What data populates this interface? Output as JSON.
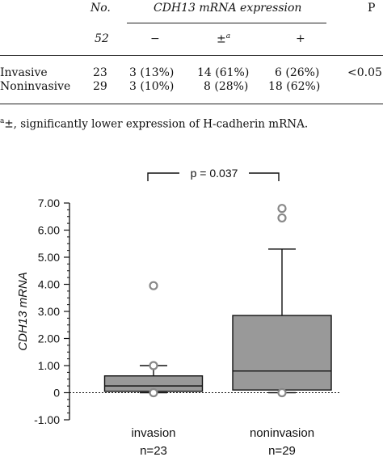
{
  "table": {
    "headers": {
      "no": "No.",
      "expression_group": "CDH13 mRNA expression",
      "p": "P"
    },
    "subheaders": {
      "total": "52",
      "minus": "−",
      "pm": "±",
      "pm_sup": "a",
      "plus": "+"
    },
    "rows": [
      {
        "label": "Invasive",
        "no": "23",
        "minus": "3 (13%)",
        "pm": "14 (61%)",
        "plus": "6 (26%)",
        "p": "<0.05"
      },
      {
        "label": "Noninvasive",
        "no": "29",
        "minus": "3 (10%)",
        "pm": "8 (28%)",
        "plus": "18 (62%)",
        "p": ""
      }
    ],
    "footnote_mark": "a",
    "footnote_text": "±, significantly lower expression of H-cadherin mRNA."
  },
  "chart_data": {
    "type": "box",
    "ylabel": "CDH13 mRNA",
    "ylim": [
      -1.0,
      7.0
    ],
    "yticks": [
      "7.00",
      "6.00",
      "5.00",
      "4.00",
      "3.00",
      "2.00",
      "1.00",
      "0",
      "-1.00"
    ],
    "ytick_values": [
      7,
      6,
      5,
      4,
      3,
      2,
      1,
      0,
      -1
    ],
    "significance_label": "p = 0.037",
    "reference_line": 0,
    "box_color": "#999999",
    "groups": [
      {
        "name": "invasion",
        "n_label": "n=23",
        "whisker_low": 0.0,
        "q1": 0.05,
        "median": 0.25,
        "q3": 0.62,
        "whisker_high": 1.0,
        "outliers": [
          3.95,
          1.0,
          0.0
        ]
      },
      {
        "name": "noninvasion",
        "n_label": "n=29",
        "whisker_low": 0.0,
        "q1": 0.1,
        "median": 0.8,
        "q3": 2.85,
        "whisker_high": 5.3,
        "outliers": [
          6.8,
          6.45,
          0.0
        ]
      }
    ]
  }
}
